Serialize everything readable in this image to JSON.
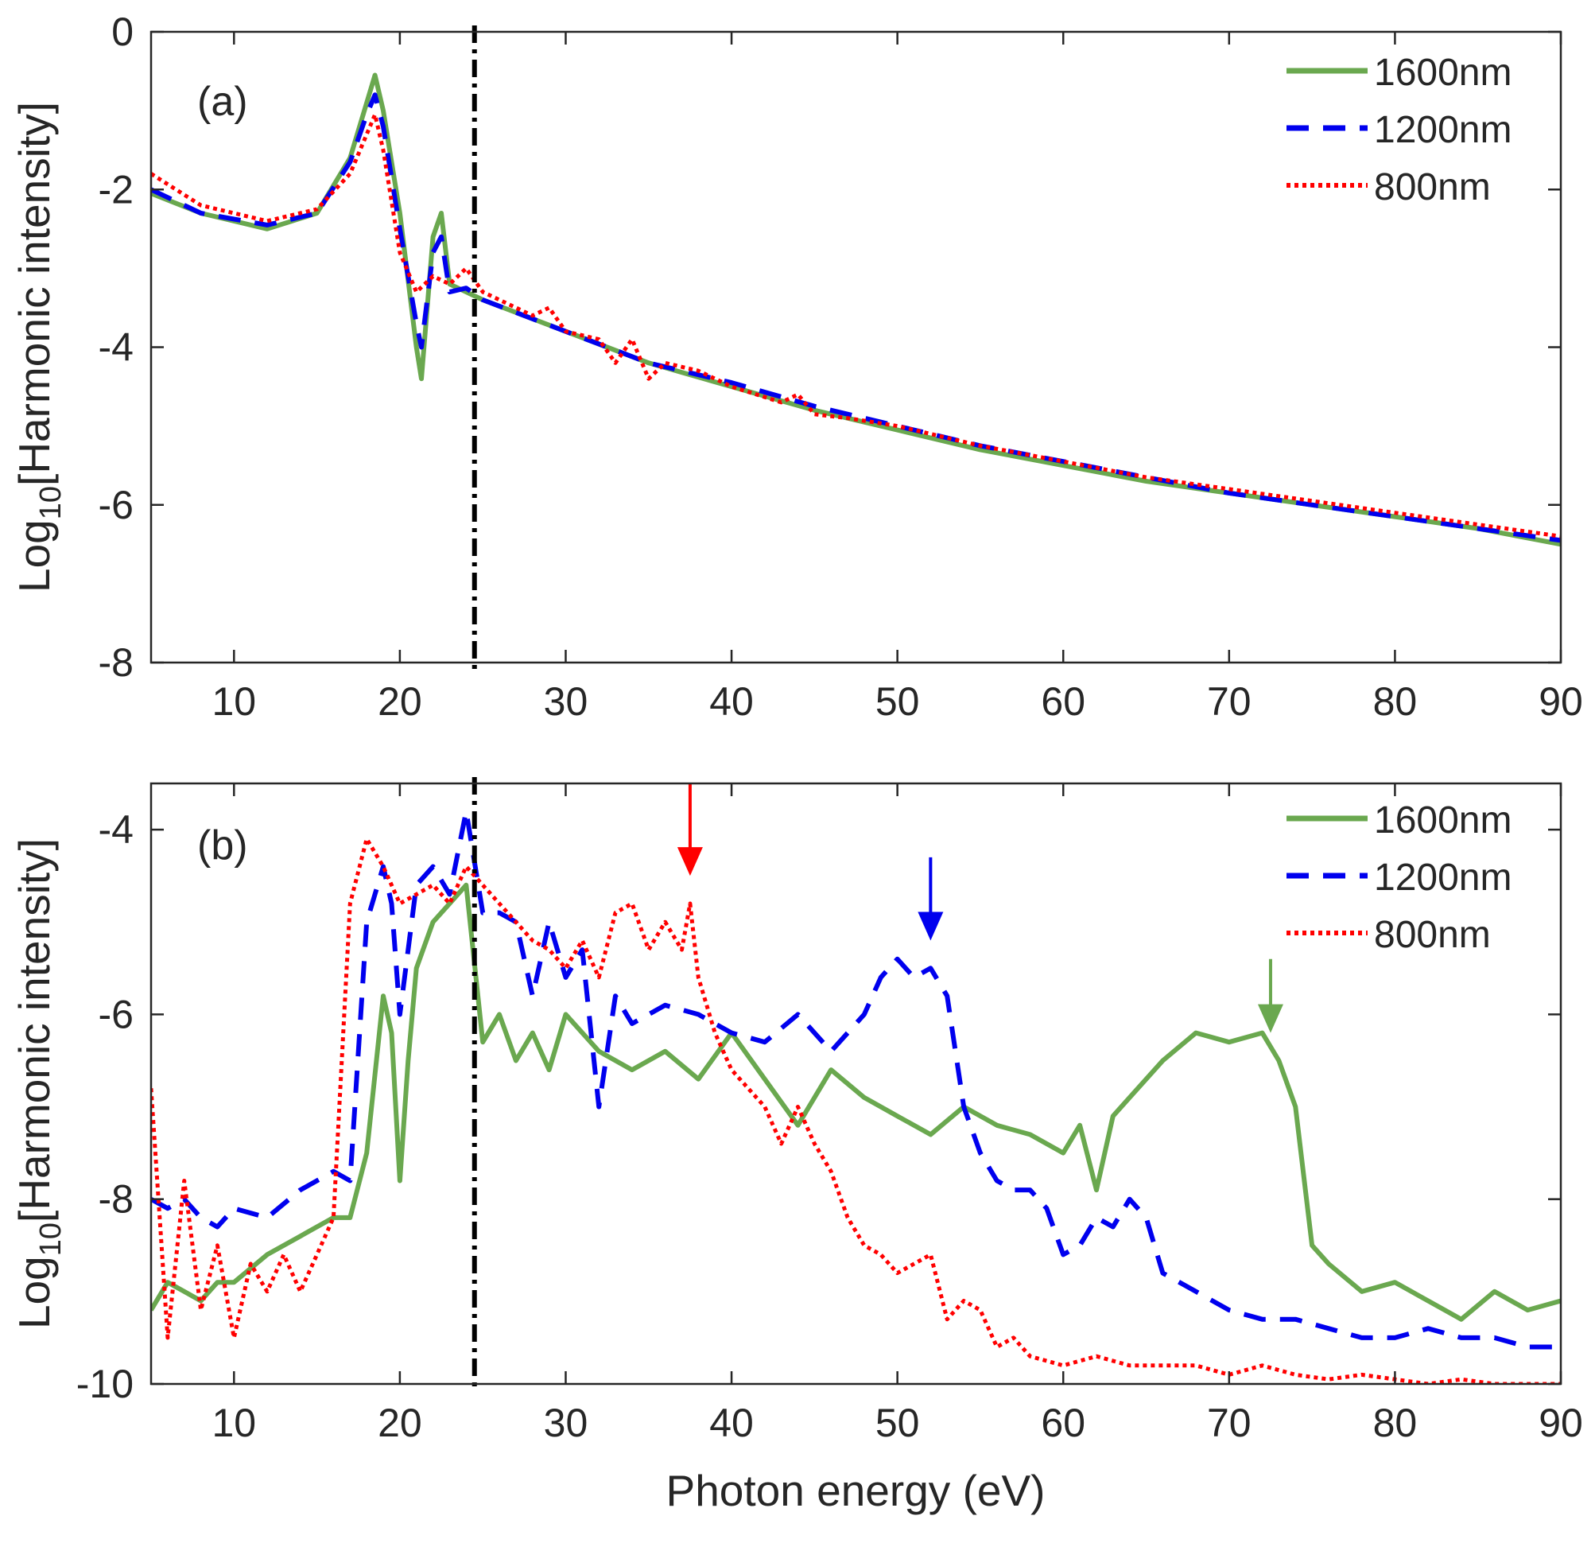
{
  "colors": {
    "1600nm": "#6aa84f",
    "1200nm": "#0000ee",
    "800nm": "#ff0000",
    "threshold": "#000000"
  },
  "chart_data": [
    {
      "type": "line",
      "panel_label": "(a)",
      "xlabel": "",
      "ylabel": {
        "base": "Log",
        "sub": "10",
        "rest": "[Harmonic intensity]"
      },
      "xlim": [
        5,
        90
      ],
      "ylim": [
        -8,
        0
      ],
      "xticks": [
        10,
        20,
        30,
        40,
        50,
        60,
        70,
        80,
        90
      ],
      "yticks": [
        0,
        -2,
        -4,
        -6,
        -8
      ],
      "legend_position": "top-right",
      "vertical_line_x": 24.5,
      "series": [
        {
          "name": "1600nm",
          "style": "solid",
          "x": [
            5,
            8,
            12,
            15,
            17,
            18,
            18.5,
            19,
            20,
            21,
            21.3,
            22,
            22.5,
            23,
            24,
            25,
            30,
            35,
            40,
            45,
            50,
            55,
            60,
            65,
            70,
            75,
            80,
            85,
            90
          ],
          "y": [
            -2.05,
            -2.3,
            -2.5,
            -2.3,
            -1.6,
            -0.9,
            -0.55,
            -1.0,
            -2.3,
            -4.0,
            -4.4,
            -2.6,
            -2.3,
            -3.2,
            -3.3,
            -3.4,
            -3.8,
            -4.2,
            -4.5,
            -4.8,
            -5.05,
            -5.3,
            -5.5,
            -5.7,
            -5.85,
            -6.0,
            -6.15,
            -6.3,
            -6.5
          ]
        },
        {
          "name": "1200nm",
          "style": "dashed",
          "x": [
            5,
            8,
            12,
            15,
            17,
            18,
            18.5,
            19,
            20,
            21,
            21.3,
            22,
            22.5,
            23,
            24,
            25,
            30,
            35,
            40,
            45,
            50,
            55,
            60,
            65,
            70,
            75,
            80,
            85,
            90
          ],
          "y": [
            -2.0,
            -2.3,
            -2.45,
            -2.3,
            -1.65,
            -1.05,
            -0.8,
            -1.2,
            -2.5,
            -3.7,
            -4.0,
            -2.8,
            -2.6,
            -3.3,
            -3.25,
            -3.4,
            -3.8,
            -4.2,
            -4.45,
            -4.75,
            -5.0,
            -5.25,
            -5.45,
            -5.65,
            -5.85,
            -6.0,
            -6.15,
            -6.3,
            -6.45
          ]
        },
        {
          "name": "800nm",
          "style": "dotted",
          "x": [
            5,
            8,
            12,
            15,
            17,
            18,
            18.5,
            19,
            20,
            21,
            22,
            23,
            24,
            25,
            28,
            29,
            30,
            32,
            33,
            34,
            35,
            36,
            38,
            40,
            43,
            44,
            45,
            47,
            50,
            55,
            60,
            65,
            70,
            75,
            80,
            85,
            90
          ],
          "y": [
            -1.8,
            -2.2,
            -2.4,
            -2.25,
            -1.8,
            -1.3,
            -1.05,
            -1.5,
            -2.8,
            -3.3,
            -3.1,
            -3.2,
            -3.0,
            -3.3,
            -3.6,
            -3.5,
            -3.8,
            -3.9,
            -4.2,
            -3.9,
            -4.4,
            -4.2,
            -4.3,
            -4.5,
            -4.7,
            -4.6,
            -4.85,
            -4.9,
            -5.0,
            -5.25,
            -5.45,
            -5.65,
            -5.8,
            -5.95,
            -6.1,
            -6.25,
            -6.4
          ]
        }
      ]
    },
    {
      "type": "line",
      "panel_label": "(b)",
      "xlabel": "Photon energy (eV)",
      "ylabel": {
        "base": "Log",
        "sub": "10",
        "rest": "[Harmonic intensity]"
      },
      "xlim": [
        5,
        90
      ],
      "ylim": [
        -10,
        -3.5
      ],
      "xticks": [
        10,
        20,
        30,
        40,
        50,
        60,
        70,
        80,
        90
      ],
      "yticks": [
        -4,
        -6,
        -8,
        -10
      ],
      "legend_position": "top-right",
      "vertical_line_x": 24.5,
      "arrows": [
        {
          "series": "800nm",
          "x": 37.5,
          "y_from": -3.5,
          "y_to": -4.5
        },
        {
          "series": "1200nm",
          "x": 52,
          "y_from": -4.3,
          "y_to": -5.2
        },
        {
          "series": "1600nm",
          "x": 72.5,
          "y_from": -5.4,
          "y_to": -6.2
        }
      ],
      "series": [
        {
          "name": "1600nm",
          "style": "solid",
          "x": [
            5,
            6,
            7,
            8,
            9,
            10,
            12,
            14,
            16,
            17,
            18,
            19,
            19.5,
            20,
            20.5,
            21,
            22,
            23,
            24,
            25,
            26,
            27,
            28,
            29,
            30,
            32,
            34,
            36,
            38,
            40,
            42,
            44,
            46,
            48,
            50,
            52,
            54,
            56,
            58,
            60,
            61,
            62,
            63,
            64,
            66,
            68,
            70,
            72,
            73,
            74,
            75,
            76,
            78,
            80,
            82,
            84,
            86,
            88,
            90
          ],
          "y": [
            -9.2,
            -8.9,
            -9.0,
            -9.1,
            -8.9,
            -8.9,
            -8.6,
            -8.4,
            -8.2,
            -8.2,
            -7.5,
            -5.8,
            -6.2,
            -7.8,
            -6.5,
            -5.5,
            -5.0,
            -4.8,
            -4.6,
            -6.3,
            -6.0,
            -6.5,
            -6.2,
            -6.6,
            -6.0,
            -6.4,
            -6.6,
            -6.4,
            -6.7,
            -6.2,
            -6.7,
            -7.2,
            -6.6,
            -6.9,
            -7.1,
            -7.3,
            -7.0,
            -7.2,
            -7.3,
            -7.5,
            -7.2,
            -7.9,
            -7.1,
            -6.9,
            -6.5,
            -6.2,
            -6.3,
            -6.2,
            -6.5,
            -7.0,
            -8.5,
            -8.7,
            -9.0,
            -8.9,
            -9.1,
            -9.3,
            -9.0,
            -9.2,
            -9.1
          ]
        },
        {
          "name": "1200nm",
          "style": "dashed",
          "x": [
            5,
            6,
            7,
            8,
            9,
            10,
            12,
            14,
            16,
            17,
            18,
            19,
            19.5,
            20,
            21,
            22,
            23,
            24,
            25,
            26,
            27,
            28,
            29,
            30,
            31,
            32,
            33,
            34,
            36,
            38,
            40,
            42,
            44,
            46,
            47,
            48,
            49,
            50,
            51,
            52,
            53,
            54,
            55,
            56,
            57,
            58,
            59,
            60,
            61,
            62,
            63,
            64,
            65,
            66,
            68,
            70,
            72,
            74,
            76,
            78,
            80,
            82,
            84,
            86,
            88,
            90
          ],
          "y": [
            -8.0,
            -8.1,
            -8.0,
            -8.2,
            -8.3,
            -8.1,
            -8.2,
            -7.9,
            -7.7,
            -7.8,
            -5.0,
            -4.4,
            -4.8,
            -6.0,
            -4.6,
            -4.4,
            -4.7,
            -3.8,
            -4.9,
            -4.9,
            -5.0,
            -5.8,
            -5.0,
            -5.6,
            -5.3,
            -7.0,
            -5.8,
            -6.1,
            -5.9,
            -6.0,
            -6.2,
            -6.3,
            -6.0,
            -6.4,
            -6.2,
            -6.0,
            -5.6,
            -5.4,
            -5.6,
            -5.5,
            -5.8,
            -7.0,
            -7.5,
            -7.8,
            -7.9,
            -7.9,
            -8.1,
            -8.6,
            -8.5,
            -8.2,
            -8.3,
            -8.0,
            -8.2,
            -8.8,
            -9.0,
            -9.2,
            -9.3,
            -9.3,
            -9.4,
            -9.5,
            -9.5,
            -9.4,
            -9.5,
            -9.5,
            -9.6,
            -9.6
          ]
        },
        {
          "name": "800nm",
          "style": "dotted",
          "x": [
            5,
            6,
            7,
            8,
            9,
            10,
            11,
            12,
            13,
            14,
            15,
            16,
            17,
            18,
            19,
            20,
            21,
            22,
            23,
            24,
            25,
            26,
            27,
            28,
            29,
            30,
            31,
            32,
            33,
            34,
            35,
            36,
            37,
            37.5,
            38,
            39,
            40,
            41,
            42,
            43,
            44,
            45,
            46,
            47,
            48,
            49,
            50,
            51,
            52,
            53,
            54,
            55,
            56,
            57,
            58,
            60,
            62,
            64,
            66,
            68,
            70,
            72,
            74,
            76,
            78,
            80,
            82,
            84,
            86,
            88,
            90
          ],
          "y": [
            -6.8,
            -9.5,
            -7.8,
            -9.2,
            -8.5,
            -9.5,
            -8.7,
            -9.0,
            -8.6,
            -9.0,
            -8.6,
            -8.2,
            -4.8,
            -4.1,
            -4.4,
            -4.8,
            -4.7,
            -4.6,
            -4.8,
            -4.4,
            -4.6,
            -4.8,
            -5.0,
            -5.2,
            -5.3,
            -5.5,
            -5.2,
            -5.6,
            -4.9,
            -4.8,
            -5.3,
            -5.0,
            -5.3,
            -4.8,
            -5.6,
            -6.2,
            -6.6,
            -6.8,
            -7.0,
            -7.4,
            -7.0,
            -7.4,
            -7.7,
            -8.2,
            -8.5,
            -8.6,
            -8.8,
            -8.7,
            -8.6,
            -9.3,
            -9.1,
            -9.2,
            -9.6,
            -9.5,
            -9.7,
            -9.8,
            -9.7,
            -9.8,
            -9.8,
            -9.8,
            -9.9,
            -9.8,
            -9.9,
            -9.95,
            -9.9,
            -9.95,
            -10.0,
            -9.95,
            -10.0,
            -10.0,
            -10.0
          ]
        }
      ]
    }
  ]
}
